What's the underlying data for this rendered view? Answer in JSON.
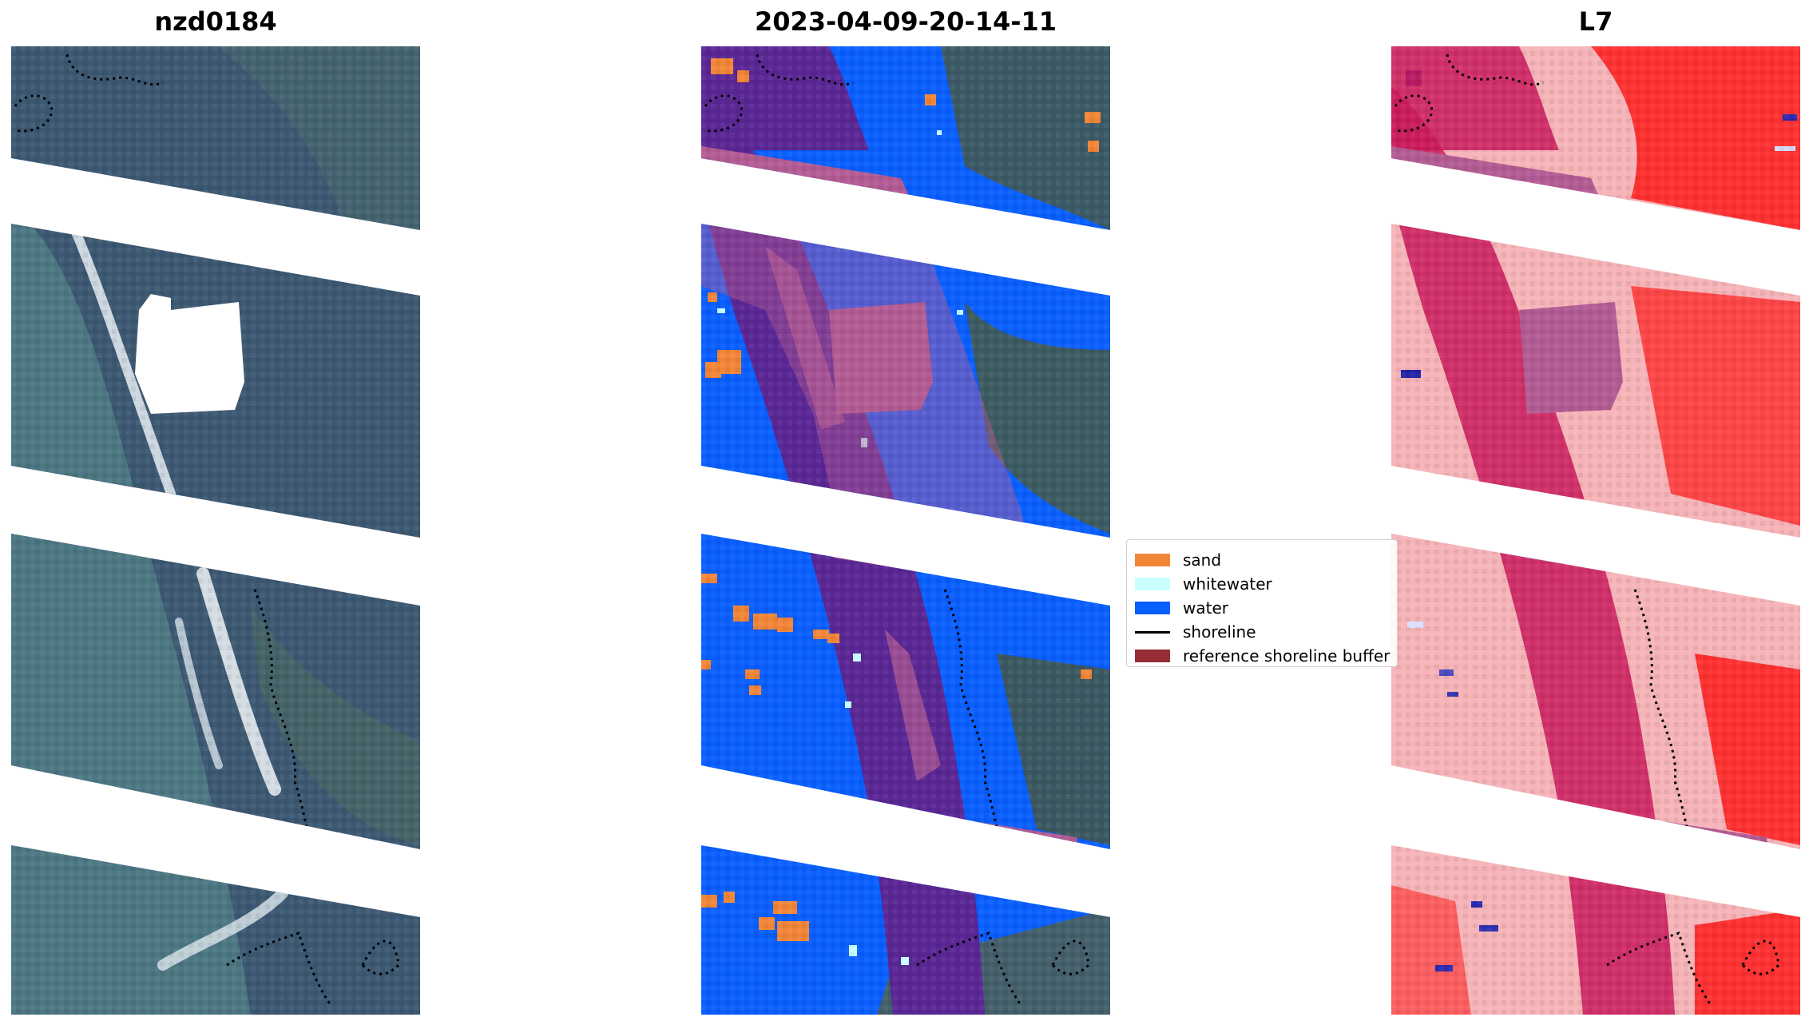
{
  "titles": {
    "left": "nzd0184",
    "middle": "2023-04-09-20-14-11",
    "right": "L7"
  },
  "legend": [
    {
      "label": "sand",
      "color": "#f28638",
      "kind": "patch"
    },
    {
      "label": "whitewater",
      "color": "#c8ffff",
      "kind": "patch"
    },
    {
      "label": "water",
      "color": "#0a5fff",
      "kind": "patch"
    },
    {
      "label": "shoreline",
      "color": "#000000",
      "kind": "line"
    },
    {
      "label": "reference shoreline buffer",
      "color": "#962d36",
      "kind": "patch"
    }
  ],
  "colors": {
    "rgb_base": "#3d5872",
    "rgb_shallow": "#4f7d86",
    "water_class": "#0a5fff",
    "buffer_overlay": "#b35c94",
    "buffer_dark": "#5a2795",
    "index_light": "#f6b4b8",
    "index_strong": "#ff1a1a",
    "index_buffer": "#c9195b"
  }
}
